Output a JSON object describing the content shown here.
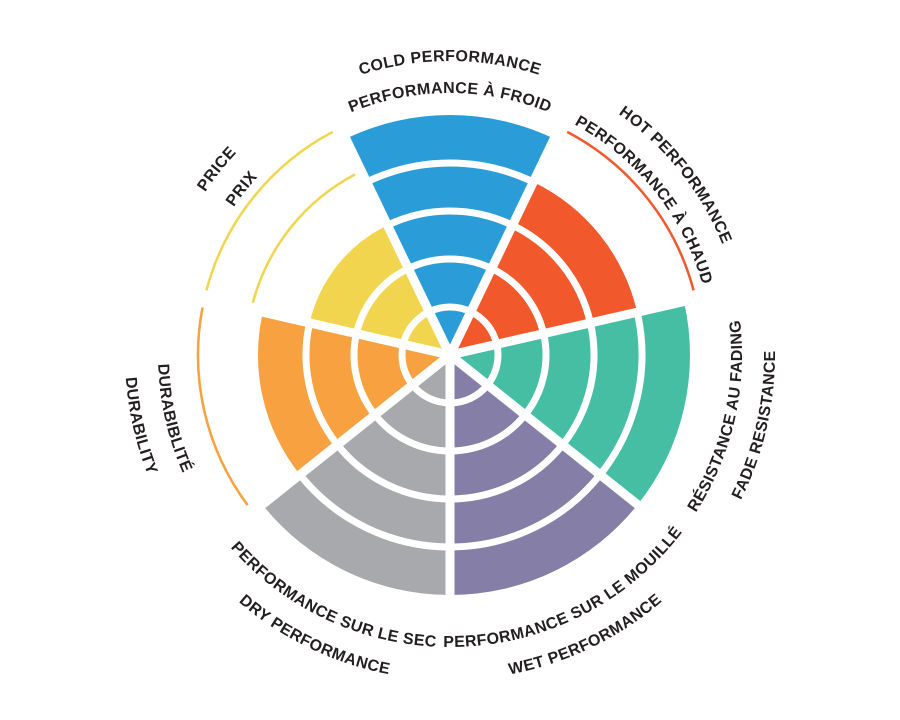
{
  "chart_data": {
    "type": "bar",
    "variant": "radial-wheel",
    "title": "",
    "categories": [
      "COLD PERFORMANCE / PERFORMANCE À FROID",
      "HOT PERFORMANCE / PERFORMANCE À CHAUD",
      "RÉSISTANCE AU FADING / FADE RESISTANCE",
      "PERFORMANCE SUR LE MOUILLÉ / WET PERFORMANCE",
      "PERFORMANCE SUR LE SEC / DRY PERFORMANCE",
      "DURABIBLITÉ / DURABILITY",
      "PRICE / PRIX"
    ],
    "values": [
      5,
      4,
      5,
      5,
      5,
      4,
      3
    ],
    "value_max": 5,
    "rings": 5,
    "legend_position": "none",
    "grid": "concentric-white-dividers"
  },
  "wheel": {
    "background": "#ffffff",
    "divider_color": "#ffffff",
    "label_color": "#231f20",
    "segments": [
      {
        "id": "cold-performance",
        "label_en": "COLD PERFORMANCE",
        "label_fr": "PERFORMANCE À FROID",
        "value": 5,
        "max": 5,
        "color": "#2a9cd8",
        "label_style": "outside"
      },
      {
        "id": "hot-performance",
        "label_en": "HOT PERFORMANCE",
        "label_fr": "PERFORMANCE À CHAUD",
        "value": 4,
        "max": 5,
        "color": "#f1592c",
        "label_style": "outside"
      },
      {
        "id": "fade-resistance",
        "label_en": "FADE RESISTANCE",
        "label_fr": "RÉSISTANCE AU FADING",
        "value": 5,
        "max": 5,
        "color": "#45bea4",
        "label_style": "inside"
      },
      {
        "id": "wet-performance",
        "label_en": "WET PERFORMANCE",
        "label_fr": "PERFORMANCE SUR LE MOUILLÉ",
        "value": 5,
        "max": 5,
        "color": "#857fa7",
        "label_style": "inside"
      },
      {
        "id": "dry-performance",
        "label_en": "DRY PERFORMANCE",
        "label_fr": "PERFORMANCE SUR LE SEC",
        "value": 5,
        "max": 5,
        "color": "#a8a9ac",
        "label_style": "inside"
      },
      {
        "id": "durability",
        "label_en": "DURABILITY",
        "label_fr": "DURABIBLITÉ",
        "value": 4,
        "max": 5,
        "color": "#f8a140",
        "label_style": "inside"
      },
      {
        "id": "price",
        "label_en": "PRICE",
        "label_fr": "PRIX",
        "value": 3,
        "max": 5,
        "color": "#f2d54e",
        "label_style": "outside"
      }
    ]
  }
}
